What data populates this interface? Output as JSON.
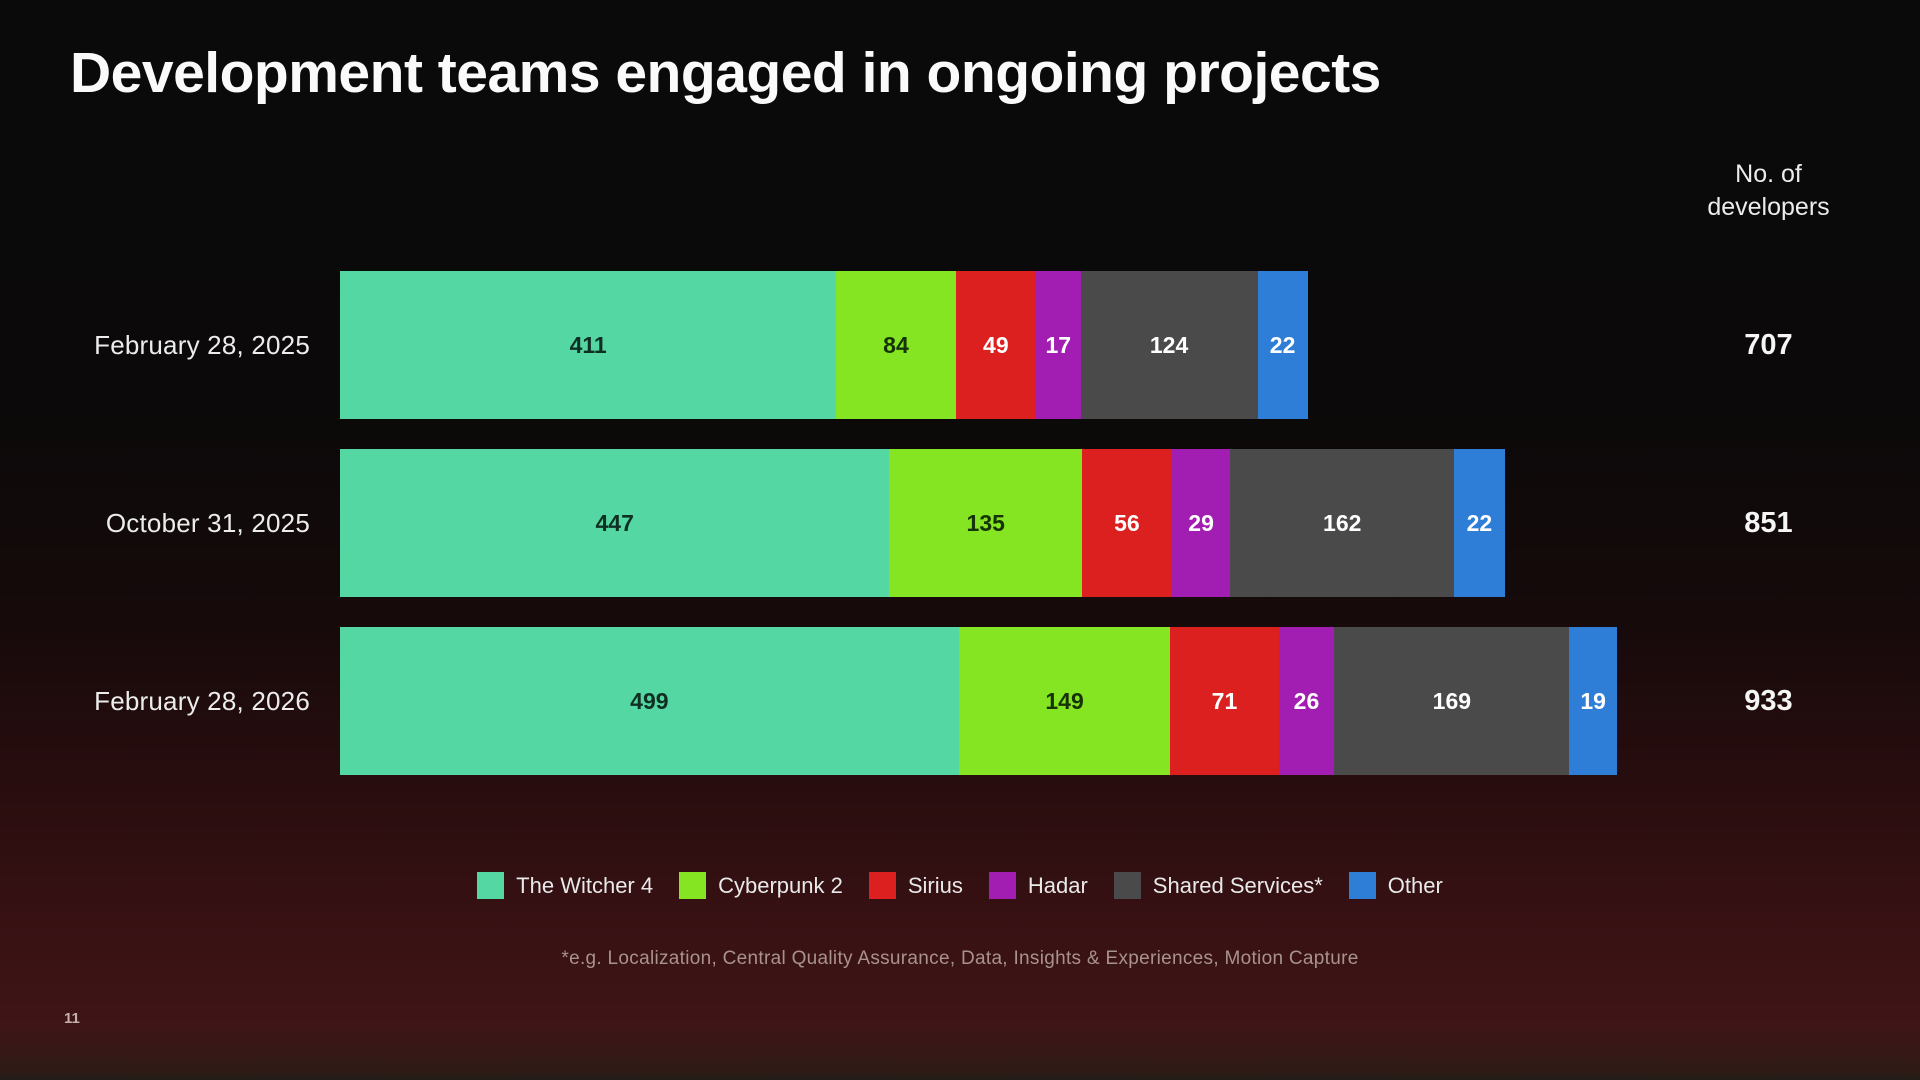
{
  "slide": {
    "title": "Development teams engaged in ongoing projects",
    "axis_header": "No. of developers",
    "footnote": "*e.g. Localization, Central Quality Assurance, Data, Insights & Experiences, Motion Capture",
    "page_number": "11"
  },
  "chart_data": {
    "type": "bar",
    "variant": "horizontal-stacked",
    "title": "Development teams engaged in ongoing projects",
    "value_axis_label": "No. of developers",
    "categories": [
      "February 28, 2025",
      "October 31, 2025",
      "February 28, 2026"
    ],
    "totals": [
      707,
      851,
      933
    ],
    "series": [
      {
        "name": "The Witcher 4",
        "color": "#55d7a3",
        "value_text_color": "#0f2f23",
        "values": [
          411,
          447,
          499
        ]
      },
      {
        "name": "Cyberpunk 2",
        "color": "#85e522",
        "value_text_color": "#153306",
        "values": [
          84,
          135,
          149
        ]
      },
      {
        "name": "Sirius",
        "color": "#dc1f1f",
        "value_text_color": "#ffffff",
        "values": [
          49,
          56,
          71
        ]
      },
      {
        "name": "Hadar",
        "color": "#a21db1",
        "value_text_color": "#ffffff",
        "values": [
          17,
          29,
          26
        ]
      },
      {
        "name": "Shared Services*",
        "color": "#4a4a4a",
        "value_text_color": "#ffffff",
        "values": [
          124,
          162,
          169
        ]
      },
      {
        "name": "Other",
        "color": "#2e7ed8",
        "value_text_color": "#ffffff",
        "values": [
          22,
          22,
          19
        ]
      }
    ],
    "legend_position": "bottom",
    "value_labels_shown": true,
    "grid": false,
    "footnote": "*e.g. Localization, Central Quality Assurance, Data, Insights & Experiences, Motion Capture"
  },
  "colors": {
    "background_top": "#0a0a0a",
    "background_bottom": "#3f1517",
    "title_text": "#fafafa",
    "label_text": "#ececec",
    "footnote_text": "#a8928f"
  }
}
